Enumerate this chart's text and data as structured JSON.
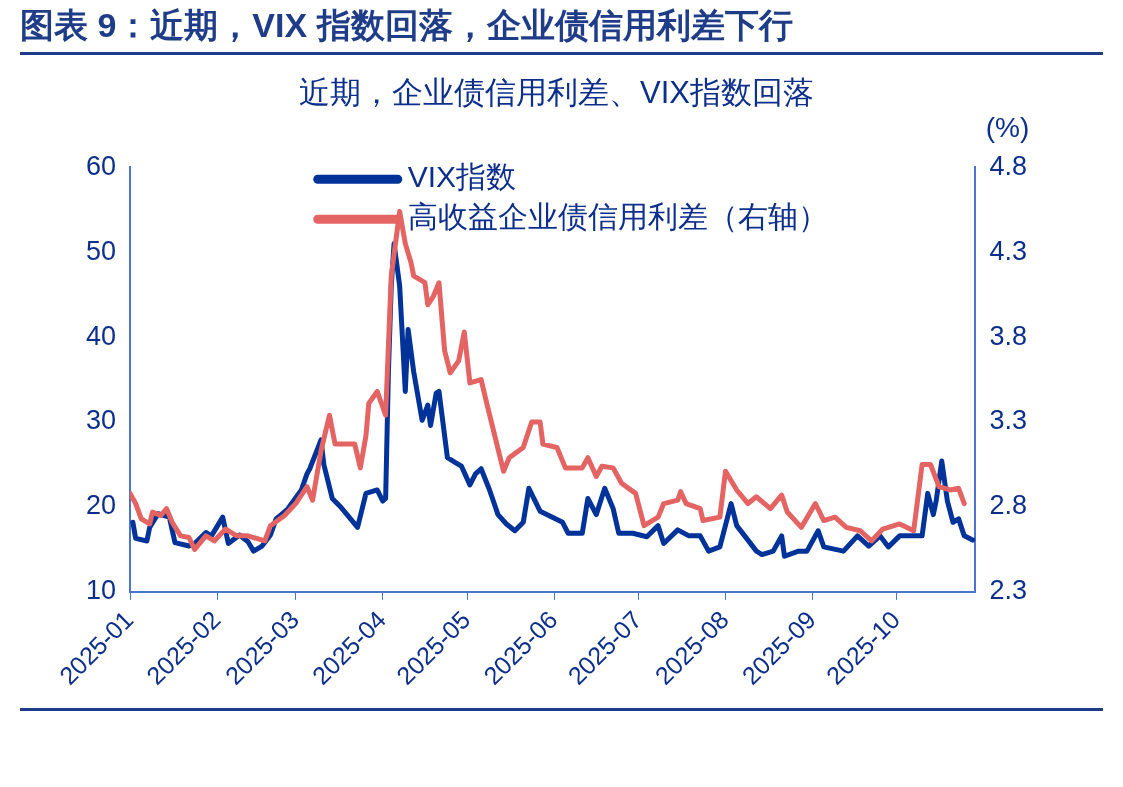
{
  "chart_data": {
    "type": "line",
    "title": "图表 9：近期，VIX 指数回落，企业债信用利差下行",
    "subtitle": "近期，企业债信用利差、VIX指数回落",
    "y2label": "(%)",
    "xlim": [
      "2025-01",
      "2025-10-29"
    ],
    "xticks": [
      "2025-01",
      "2025-02",
      "2025-03",
      "2025-04",
      "2025-05",
      "2025-06",
      "2025-07",
      "2025-08",
      "2025-09",
      "2025-10"
    ],
    "ylim": [
      10,
      60
    ],
    "yticks": [
      10,
      20,
      30,
      40,
      50,
      60
    ],
    "y2lim": [
      2.3,
      4.8
    ],
    "y2ticks": [
      2.3,
      2.8,
      3.3,
      3.8,
      4.3,
      4.8
    ],
    "grid": false,
    "legend": "top",
    "marker": "none",
    "line_style": "solid",
    "series": [
      {
        "name": "VIX指数",
        "color": "#003399",
        "x": [
          "2025-01-02",
          "2025-01-03",
          "2025-01-07",
          "2025-01-08",
          "2025-01-11",
          "2025-01-15",
          "2025-01-17",
          "2025-01-22",
          "2025-01-24",
          "2025-01-28",
          "2025-01-30",
          "2025-02-03",
          "2025-02-05",
          "2025-02-09",
          "2025-02-12",
          "2025-02-14",
          "2025-02-17",
          "2025-02-20",
          "2025-02-22",
          "2025-02-26",
          "2025-03-03",
          "2025-03-05",
          "2025-03-06",
          "2025-03-10",
          "2025-03-11",
          "2025-03-14",
          "2025-03-17",
          "2025-03-23",
          "2025-03-26",
          "2025-03-30",
          "2025-04-01",
          "2025-04-02",
          "2025-04-03",
          "2025-04-04",
          "2025-04-05",
          "2025-04-07",
          "2025-04-09",
          "2025-04-10",
          "2025-04-12",
          "2025-04-15",
          "2025-04-17",
          "2025-04-18",
          "2025-04-20",
          "2025-04-21",
          "2025-04-24",
          "2025-04-27",
          "2025-04-29",
          "2025-05-02",
          "2025-05-04",
          "2025-05-06",
          "2025-05-09",
          "2025-05-12",
          "2025-05-15",
          "2025-05-18",
          "2025-05-21",
          "2025-05-23",
          "2025-05-27",
          "2025-06-04",
          "2025-06-06",
          "2025-06-11",
          "2025-06-13",
          "2025-06-16",
          "2025-06-19",
          "2025-06-22",
          "2025-06-24",
          "2025-06-29",
          "2025-07-04",
          "2025-07-08",
          "2025-07-10",
          "2025-07-15",
          "2025-07-19",
          "2025-07-23",
          "2025-07-26",
          "2025-07-30",
          "2025-08-03",
          "2025-08-05",
          "2025-08-09",
          "2025-08-12",
          "2025-08-14",
          "2025-08-18",
          "2025-08-21",
          "2025-08-22",
          "2025-08-27",
          "2025-08-30",
          "2025-09-03",
          "2025-09-05",
          "2025-09-12",
          "2025-09-17",
          "2025-09-21",
          "2025-09-25",
          "2025-09-28",
          "2025-10-02",
          "2025-10-10",
          "2025-10-12",
          "2025-10-14",
          "2025-10-15",
          "2025-10-17",
          "2025-10-19",
          "2025-10-21",
          "2025-10-23",
          "2025-10-25",
          "2025-10-28"
        ],
        "values": [
          18.2,
          16.3,
          16.0,
          17.6,
          19.2,
          18.8,
          15.8,
          15.4,
          15.7,
          17.0,
          16.6,
          18.8,
          15.7,
          16.7,
          15.9,
          14.8,
          15.4,
          16.7,
          18.6,
          19.7,
          22.0,
          23.9,
          24.5,
          27.9,
          25.0,
          21.0,
          20.0,
          17.6,
          21.6,
          22.0,
          20.7,
          21,
          36,
          46,
          51,
          46,
          33.6,
          40.9,
          35.9,
          30.2,
          32.0,
          29.6,
          33.4,
          33.6,
          25.8,
          25.2,
          24.8,
          22.6,
          23.9,
          24.5,
          22.0,
          19.1,
          18.0,
          17.2,
          18.2,
          22.2,
          19.5,
          18.2,
          16.9,
          16.9,
          21.0,
          19.1,
          22.2,
          19.8,
          16.9,
          16.9,
          16.5,
          17.8,
          15.7,
          17.3,
          16.6,
          16.6,
          14.8,
          15.3,
          20.4,
          17.8,
          16.1,
          14.8,
          14.4,
          14.8,
          16.6,
          14.2,
          14.8,
          14.8,
          17.2,
          15.3,
          14.8,
          16.6,
          15.4,
          16.6,
          15.3,
          16.6,
          16.6,
          21.6,
          19.1,
          20.7,
          25.4,
          20.7,
          18.2,
          18.6,
          16.6,
          16.1
        ]
      },
      {
        "name": "高收益企业债信用利差（右轴）",
        "color": "#e46363",
        "axis": "y2",
        "x": [
          "2025-01-01",
          "2025-01-03",
          "2025-01-05",
          "2025-01-08",
          "2025-01-09",
          "2025-01-12",
          "2025-01-14",
          "2025-01-16",
          "2025-01-19",
          "2025-01-22",
          "2025-01-24",
          "2025-01-28",
          "2025-01-31",
          "2025-02-04",
          "2025-02-08",
          "2025-02-12",
          "2025-02-18",
          "2025-02-20",
          "2025-02-25",
          "2025-03-01",
          "2025-03-05",
          "2025-03-07",
          "2025-03-10",
          "2025-03-13",
          "2025-03-15",
          "2025-03-18",
          "2025-03-22",
          "2025-03-24",
          "2025-03-26",
          "2025-03-27",
          "2025-03-30",
          "2025-04-02",
          "2025-04-04",
          "2025-04-07",
          "2025-04-09",
          "2025-04-11",
          "2025-04-12",
          "2025-04-16",
          "2025-04-17",
          "2025-04-19",
          "2025-04-21",
          "2025-04-23",
          "2025-04-25",
          "2025-04-28",
          "2025-04-30",
          "2025-05-02",
          "2025-05-06",
          "2025-05-08",
          "2025-05-14",
          "2025-05-16",
          "2025-05-21",
          "2025-05-24",
          "2025-05-27",
          "2025-05-28",
          "2025-06-02",
          "2025-06-05",
          "2025-06-11",
          "2025-06-13",
          "2025-06-16",
          "2025-06-18",
          "2025-06-22",
          "2025-06-25",
          "2025-06-30",
          "2025-07-03",
          "2025-07-08",
          "2025-07-10",
          "2025-07-15",
          "2025-07-16",
          "2025-07-18",
          "2025-07-23",
          "2025-07-24",
          "2025-07-30",
          "2025-08-01",
          "2025-08-05",
          "2025-08-09",
          "2025-08-12",
          "2025-08-17",
          "2025-08-21",
          "2025-08-23",
          "2025-08-28",
          "2025-09-02",
          "2025-09-05",
          "2025-09-09",
          "2025-09-13",
          "2025-09-18",
          "2025-09-22",
          "2025-09-26",
          "2025-10-02",
          "2025-10-07",
          "2025-10-10",
          "2025-10-13",
          "2025-10-16",
          "2025-10-20",
          "2025-10-23",
          "2025-10-25"
        ],
        "values": [
          2.88,
          2.82,
          2.73,
          2.7,
          2.77,
          2.75,
          2.79,
          2.71,
          2.63,
          2.62,
          2.55,
          2.63,
          2.6,
          2.67,
          2.63,
          2.63,
          2.6,
          2.69,
          2.75,
          2.82,
          2.92,
          2.84,
          3.13,
          3.34,
          3.17,
          3.17,
          3.17,
          3.03,
          3.22,
          3.41,
          3.48,
          3.34,
          4.16,
          4.54,
          4.35,
          4.24,
          4.16,
          4.12,
          3.99,
          4.04,
          4.12,
          3.72,
          3.59,
          3.66,
          3.83,
          3.53,
          3.55,
          3.41,
          3.01,
          3.09,
          3.15,
          3.3,
          3.3,
          3.17,
          3.15,
          3.03,
          3.03,
          3.09,
          2.98,
          3.04,
          3.03,
          2.94,
          2.88,
          2.69,
          2.74,
          2.82,
          2.84,
          2.89,
          2.82,
          2.79,
          2.72,
          2.74,
          3.01,
          2.9,
          2.82,
          2.86,
          2.79,
          2.87,
          2.77,
          2.68,
          2.82,
          2.72,
          2.74,
          2.68,
          2.66,
          2.6,
          2.67,
          2.7,
          2.66,
          3.05,
          3.05,
          2.92,
          2.9,
          2.91,
          2.82
        ]
      }
    ]
  }
}
